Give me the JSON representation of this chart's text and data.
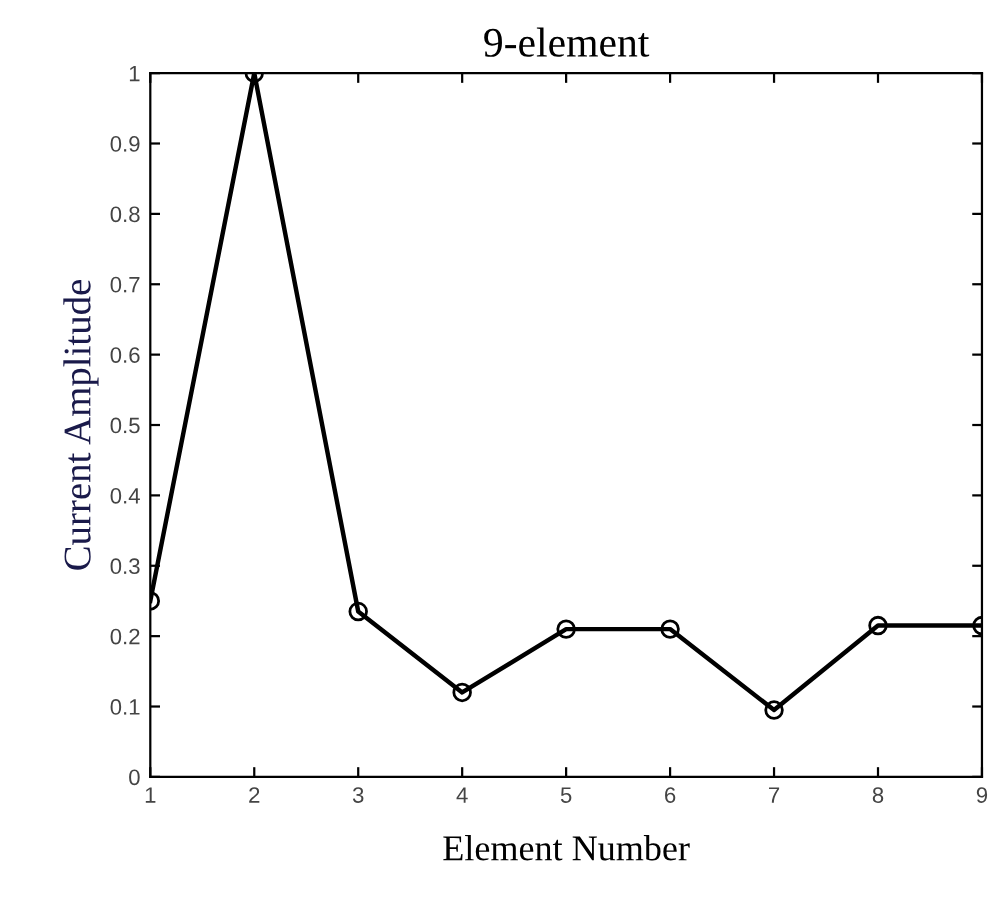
{
  "chart_data": {
    "type": "line",
    "title": "9-element",
    "xlabel": "Element Number",
    "ylabel": "Current Amplitude",
    "x": [
      1,
      2,
      3,
      4,
      5,
      6,
      7,
      8,
      9
    ],
    "series": [
      {
        "color": "#000000",
        "values": [
          0.25,
          1.0,
          0.235,
          0.12,
          0.21,
          0.21,
          0.095,
          0.215,
          0.215
        ]
      }
    ],
    "xlim": [
      1,
      9
    ],
    "xticks": [
      1,
      2,
      3,
      4,
      5,
      6,
      7,
      8,
      9
    ],
    "ylim": [
      0,
      1
    ],
    "yticks": [
      0,
      0.1,
      0.2,
      0.3,
      0.4,
      0.5,
      0.6,
      0.7,
      0.8,
      0.9,
      1
    ],
    "grid": false,
    "marker": "circle",
    "line_style": "solid"
  }
}
